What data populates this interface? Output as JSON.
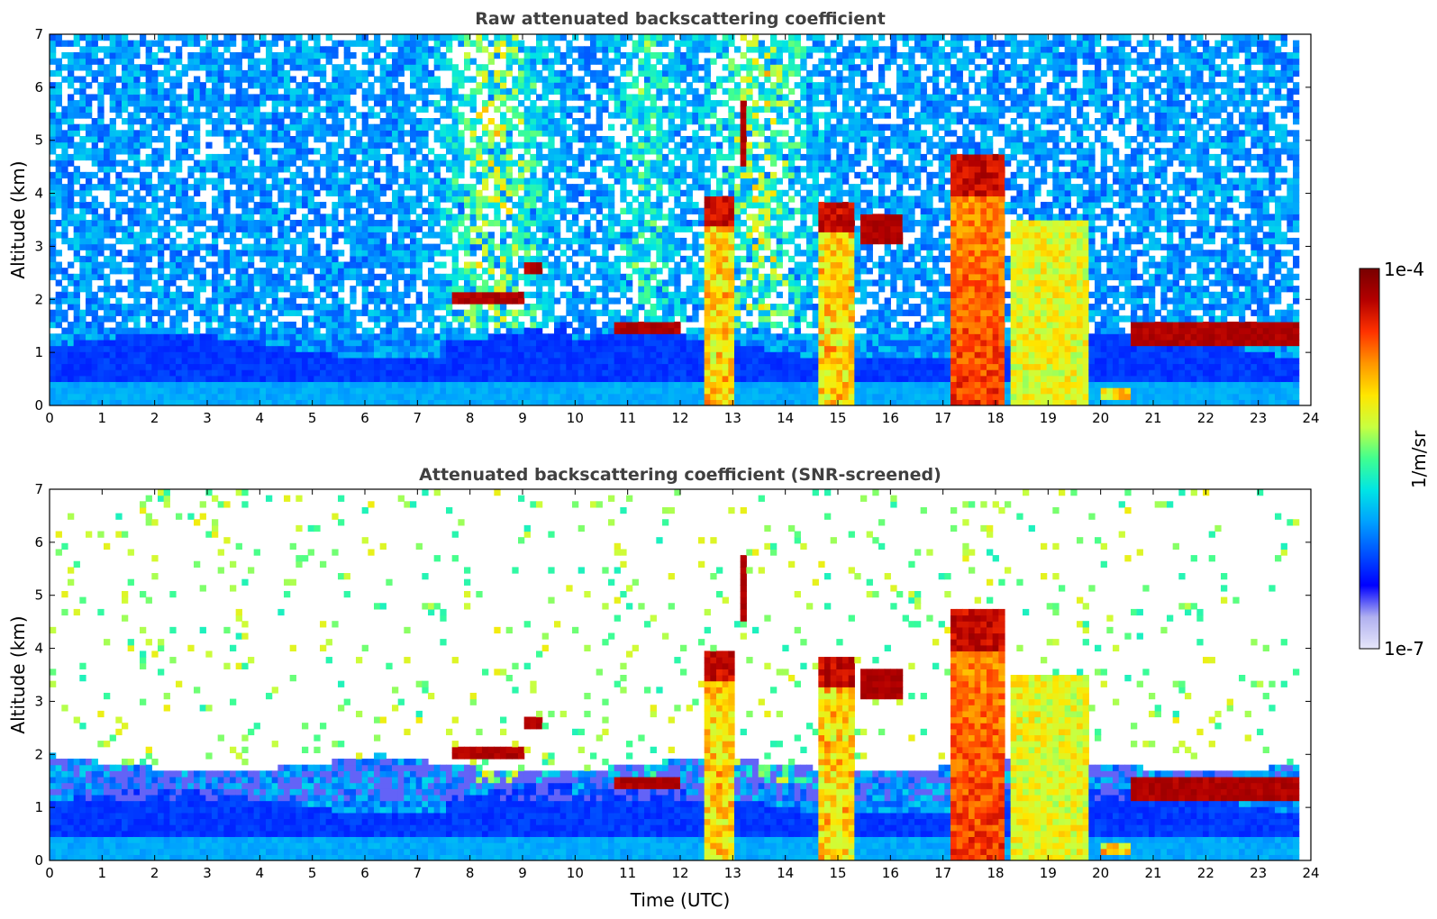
{
  "chart_data": [
    {
      "type": "heatmap",
      "title": "Raw attenuated backscattering coefficient",
      "xlabel": "",
      "ylabel": "Altitude (km)",
      "xlim": [
        0,
        24
      ],
      "ylim": [
        0,
        7
      ],
      "x_ticks": [
        "0",
        "1",
        "2",
        "3",
        "4",
        "5",
        "6",
        "7",
        "8",
        "9",
        "10",
        "11",
        "12",
        "13",
        "14",
        "15",
        "16",
        "17",
        "18",
        "19",
        "20",
        "21",
        "22",
        "23",
        "24"
      ],
      "y_ticks": [
        "0",
        "1",
        "2",
        "3",
        "4",
        "5",
        "6",
        "7"
      ],
      "data_end_time": 23.8,
      "boundary_layer_top_km": 1.1,
      "cloud_features": [
        {
          "time": [
            7.7,
            9.0
          ],
          "altitude": [
            1.95,
            2.2
          ],
          "intensity": "high"
        },
        {
          "time": [
            9.0,
            9.4
          ],
          "altitude": [
            2.5,
            2.75
          ],
          "intensity": "high"
        },
        {
          "time": [
            10.7,
            12.0
          ],
          "altitude": [
            1.3,
            1.6
          ],
          "intensity": "high"
        },
        {
          "time": [
            12.5,
            13.0
          ],
          "altitude": [
            0,
            4.0
          ],
          "intensity": "high"
        },
        {
          "time": [
            13.1,
            13.3
          ],
          "altitude": [
            4.5,
            5.8
          ],
          "intensity": "high"
        },
        {
          "time": [
            14.6,
            15.3
          ],
          "altitude": [
            0,
            3.8
          ],
          "intensity": "high"
        },
        {
          "time": [
            15.4,
            16.2
          ],
          "altitude": [
            3.0,
            3.6
          ],
          "intensity": "high"
        },
        {
          "time": [
            17.2,
            18.2
          ],
          "altitude": [
            0,
            4.7
          ],
          "intensity": "very high"
        },
        {
          "time": [
            18.3,
            19.8
          ],
          "altitude": [
            0,
            3.5
          ],
          "intensity": "medium"
        },
        {
          "time": [
            20.0,
            20.6
          ],
          "altitude": [
            0.15,
            0.35
          ],
          "intensity": "high"
        },
        {
          "time": [
            20.6,
            23.8
          ],
          "altitude": [
            1.1,
            1.6
          ],
          "intensity": "high"
        }
      ]
    },
    {
      "type": "heatmap",
      "title": "Attenuated backscattering coefficient (SNR-screened)",
      "xlabel": "Time (UTC)",
      "ylabel": "Altitude (km)",
      "xlim": [
        0,
        24
      ],
      "ylim": [
        0,
        7
      ],
      "x_ticks": [
        "0",
        "1",
        "2",
        "3",
        "4",
        "5",
        "6",
        "7",
        "8",
        "9",
        "10",
        "11",
        "12",
        "13",
        "14",
        "15",
        "16",
        "17",
        "18",
        "19",
        "20",
        "21",
        "22",
        "23",
        "24"
      ],
      "y_ticks": [
        "0",
        "1",
        "2",
        "3",
        "4",
        "5",
        "6",
        "7"
      ],
      "data_end_time": 23.8,
      "screened_top_km": 2.0
    }
  ],
  "colorbar": {
    "label": "1/m/sr",
    "min_label": "1e-7",
    "max_label": "1e-4",
    "scale": "log",
    "colormap": [
      "#e6e6fa",
      "#b0b0f0",
      "#0000ff",
      "#0050ff",
      "#00a0ff",
      "#00e5e5",
      "#40ff90",
      "#c8ff40",
      "#ffe600",
      "#ff9600",
      "#ff3200",
      "#b40000",
      "#780000"
    ]
  }
}
